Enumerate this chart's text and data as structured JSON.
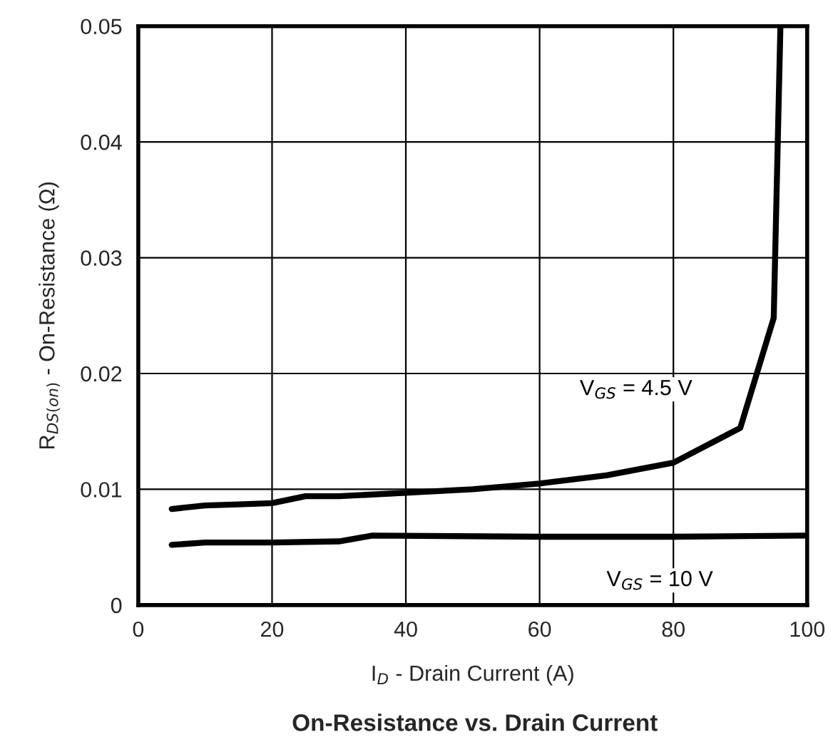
{
  "chart_data": {
    "type": "line",
    "title": "On-Resistance vs. Drain Current",
    "xlabel": "I$_{D}$ - Drain Current (A)",
    "ylabel": "R$_{DS(on)}$ - On-Resistance (Ω)",
    "series": [
      {
        "name": "V$_{GS}$ = 4.5 V",
        "color": "#000000",
        "x": [
          5,
          10,
          15,
          20,
          25,
          30,
          40,
          50,
          60,
          70,
          80,
          90,
          95,
          96
        ],
        "values": [
          0.0083,
          0.0086,
          0.0087,
          0.0088,
          0.0094,
          0.0094,
          0.0097,
          0.01,
          0.0105,
          0.0112,
          0.0123,
          0.0153,
          0.0248,
          0.05
        ]
      },
      {
        "name": "V$_{GS}$ = 10 V",
        "color": "#000000",
        "x": [
          5,
          10,
          20,
          30,
          35,
          60,
          80,
          100
        ],
        "values": [
          0.0052,
          0.0054,
          0.0054,
          0.0055,
          0.006,
          0.0059,
          0.0059,
          0.006
        ]
      }
    ],
    "xlim": [
      0,
      100
    ],
    "xticks": [
      0,
      20,
      40,
      60,
      80,
      100
    ],
    "ylim": [
      0,
      0.05
    ],
    "yticks": [
      0,
      0.01,
      0.02,
      0.03,
      0.04,
      0.05
    ],
    "grid": true,
    "marker": "none",
    "line_style": "solid",
    "legend": false
  }
}
